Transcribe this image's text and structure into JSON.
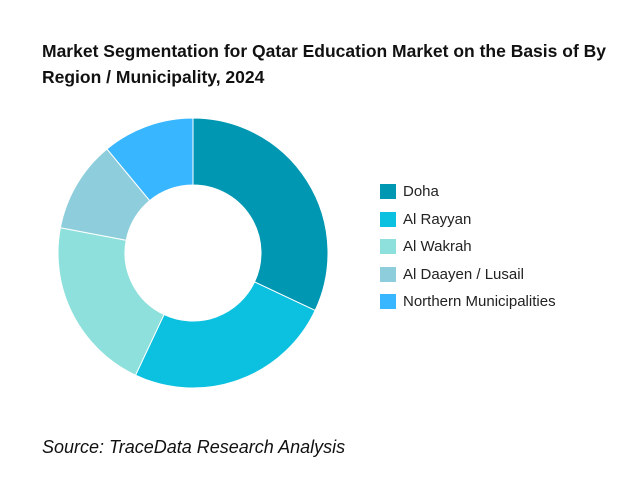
{
  "chart_data": {
    "type": "pie",
    "style": "donut",
    "title": "Market Segmentation for Qatar Education Market on the Basis of By Region / Municipality, 2024",
    "categories": [
      "Doha",
      "Al Rayyan",
      "Al Wakrah",
      "Al Daayen / Lusail",
      "Northern Municipalities"
    ],
    "values": [
      32,
      25,
      21,
      11,
      11
    ],
    "colors": [
      "#0097b2",
      "#0cc0df",
      "#8ee0dc",
      "#8ecedc",
      "#38b6ff"
    ],
    "legend_position": "right"
  },
  "source": "Source: TraceData Research Analysis"
}
